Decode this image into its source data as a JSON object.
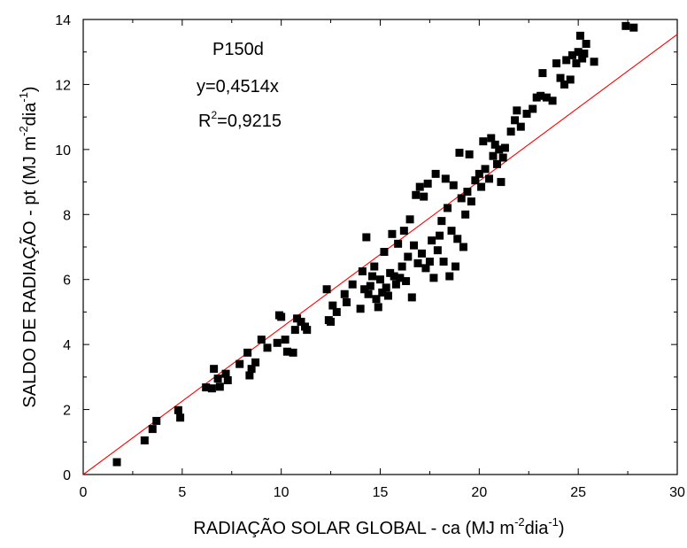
{
  "chart_data": {
    "type": "scatter",
    "xlabel": "RADIAÇÃO SOLAR GLOBAL - ca (MJ m",
    "xlabel_sup1": "-2",
    "xlabel_mid": "dia",
    "xlabel_sup2": "-1",
    "xlabel_end": ")",
    "ylabel": "SALDO DE RADIAÇÃO - pt (MJ m",
    "ylabel_sup1": "-2",
    "ylabel_mid": "dia",
    "ylabel_sup2": "-1",
    "ylabel_end": ")",
    "xlim": [
      0,
      30
    ],
    "ylim": [
      0,
      14
    ],
    "xticks": [
      0,
      5,
      10,
      15,
      20,
      25,
      30
    ],
    "yticks": [
      0,
      2,
      4,
      6,
      8,
      10,
      12,
      14
    ],
    "annotation": {
      "title": "P150d",
      "equation": "y=0,4514x",
      "r2_label": "R",
      "r2_sup": "2",
      "r2_value": "=0,9215"
    },
    "fit_line": {
      "slope": 0.4514,
      "intercept": 0,
      "color": "#ff0000"
    },
    "marker_color": "#000000",
    "points": [
      [
        1.7,
        0.38
      ],
      [
        3.1,
        1.05
      ],
      [
        3.5,
        1.4
      ],
      [
        3.7,
        1.65
      ],
      [
        4.8,
        1.98
      ],
      [
        4.9,
        1.75
      ],
      [
        6.2,
        2.68
      ],
      [
        6.5,
        2.65
      ],
      [
        6.6,
        3.25
      ],
      [
        6.8,
        2.95
      ],
      [
        6.9,
        2.7
      ],
      [
        7.2,
        3.1
      ],
      [
        7.3,
        2.9
      ],
      [
        7.9,
        3.4
      ],
      [
        8.3,
        3.75
      ],
      [
        8.4,
        3.05
      ],
      [
        8.5,
        3.25
      ],
      [
        8.7,
        3.45
      ],
      [
        9.0,
        4.15
      ],
      [
        9.3,
        3.9
      ],
      [
        9.8,
        4.05
      ],
      [
        9.9,
        4.9
      ],
      [
        10.0,
        4.85
      ],
      [
        10.2,
        4.15
      ],
      [
        10.3,
        3.78
      ],
      [
        10.6,
        3.75
      ],
      [
        10.7,
        4.45
      ],
      [
        10.8,
        4.8
      ],
      [
        11.0,
        4.7
      ],
      [
        11.2,
        4.55
      ],
      [
        11.3,
        4.45
      ],
      [
        12.3,
        5.7
      ],
      [
        12.4,
        4.75
      ],
      [
        12.5,
        4.7
      ],
      [
        12.6,
        5.2
      ],
      [
        12.8,
        5.0
      ],
      [
        13.2,
        5.55
      ],
      [
        13.3,
        5.3
      ],
      [
        13.6,
        5.85
      ],
      [
        14.0,
        5.1
      ],
      [
        14.1,
        6.25
      ],
      [
        14.2,
        5.7
      ],
      [
        14.3,
        7.3
      ],
      [
        14.4,
        5.55
      ],
      [
        14.5,
        5.8
      ],
      [
        14.6,
        6.1
      ],
      [
        14.7,
        6.4
      ],
      [
        14.8,
        5.4
      ],
      [
        14.9,
        5.15
      ],
      [
        15.0,
        6.0
      ],
      [
        15.1,
        5.6
      ],
      [
        15.2,
        6.85
      ],
      [
        15.3,
        5.75
      ],
      [
        15.4,
        5.5
      ],
      [
        15.5,
        6.2
      ],
      [
        15.6,
        7.4
      ],
      [
        15.7,
        6.1
      ],
      [
        15.8,
        5.85
      ],
      [
        15.9,
        7.1
      ],
      [
        16.0,
        6.05
      ],
      [
        16.1,
        6.4
      ],
      [
        16.2,
        7.5
      ],
      [
        16.3,
        5.95
      ],
      [
        16.4,
        6.7
      ],
      [
        16.5,
        7.85
      ],
      [
        16.6,
        5.45
      ],
      [
        16.7,
        7.05
      ],
      [
        16.8,
        8.6
      ],
      [
        16.9,
        6.5
      ],
      [
        17.0,
        8.85
      ],
      [
        17.1,
        6.8
      ],
      [
        17.2,
        8.55
      ],
      [
        17.3,
        6.35
      ],
      [
        17.4,
        8.95
      ],
      [
        17.5,
        6.55
      ],
      [
        17.6,
        7.2
      ],
      [
        17.7,
        6.05
      ],
      [
        17.8,
        9.25
      ],
      [
        17.9,
        6.9
      ],
      [
        18.0,
        7.35
      ],
      [
        18.1,
        7.8
      ],
      [
        18.2,
        6.55
      ],
      [
        18.3,
        9.1
      ],
      [
        18.4,
        8.2
      ],
      [
        18.5,
        6.1
      ],
      [
        18.6,
        7.5
      ],
      [
        18.7,
        8.9
      ],
      [
        18.8,
        6.4
      ],
      [
        18.9,
        7.25
      ],
      [
        19.0,
        9.9
      ],
      [
        19.1,
        8.5
      ],
      [
        19.2,
        7.0
      ],
      [
        19.3,
        8.0
      ],
      [
        19.4,
        8.7
      ],
      [
        19.5,
        9.85
      ],
      [
        19.6,
        8.4
      ],
      [
        19.8,
        9.05
      ],
      [
        20.0,
        9.25
      ],
      [
        20.1,
        8.85
      ],
      [
        20.2,
        10.25
      ],
      [
        20.3,
        9.4
      ],
      [
        20.5,
        9.1
      ],
      [
        20.6,
        10.35
      ],
      [
        20.7,
        9.8
      ],
      [
        20.8,
        10.15
      ],
      [
        20.9,
        9.55
      ],
      [
        21.0,
        10.0
      ],
      [
        21.1,
        9.0
      ],
      [
        21.2,
        9.75
      ],
      [
        21.3,
        10.05
      ],
      [
        21.6,
        10.55
      ],
      [
        21.8,
        10.9
      ],
      [
        21.9,
        11.2
      ],
      [
        22.1,
        10.7
      ],
      [
        22.4,
        11.1
      ],
      [
        22.7,
        11.25
      ],
      [
        22.9,
        11.6
      ],
      [
        23.1,
        11.65
      ],
      [
        23.2,
        12.35
      ],
      [
        23.4,
        11.6
      ],
      [
        23.7,
        11.5
      ],
      [
        23.9,
        12.65
      ],
      [
        24.1,
        12.2
      ],
      [
        24.3,
        12.0
      ],
      [
        24.6,
        12.15
      ],
      [
        24.4,
        12.75
      ],
      [
        24.7,
        12.9
      ],
      [
        24.9,
        12.65
      ],
      [
        25.0,
        13.0
      ],
      [
        25.1,
        13.5
      ],
      [
        25.2,
        12.8
      ],
      [
        25.4,
        13.25
      ],
      [
        25.3,
        12.95
      ],
      [
        25.8,
        12.7
      ],
      [
        27.4,
        13.8
      ],
      [
        27.8,
        13.75
      ]
    ]
  }
}
